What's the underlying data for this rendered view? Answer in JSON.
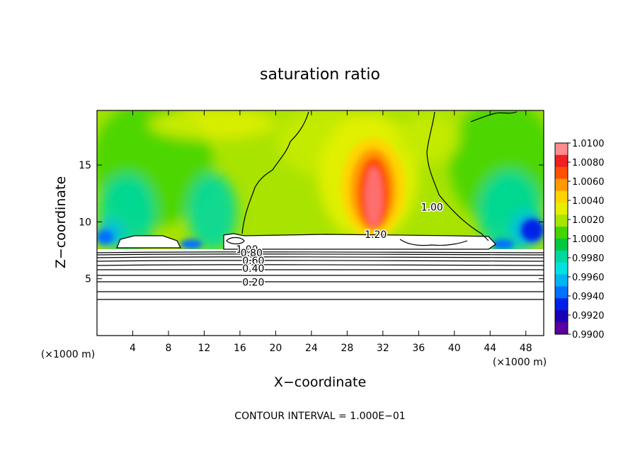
{
  "chart_data": {
    "type": "heatmap",
    "title": "saturation ratio",
    "xlabel": "X−coordinate",
    "ylabel": "Z−coordinate",
    "x_unit_left": "(×1000 m)",
    "x_unit_right": "(×1000 m)",
    "footer": "CONTOUR INTERVAL = 1.000E−01",
    "xlim": [
      0,
      50
    ],
    "ylim": [
      0,
      19.8
    ],
    "x_ticks": [
      4,
      8,
      12,
      16,
      20,
      24,
      28,
      32,
      36,
      40,
      44,
      48
    ],
    "y_ticks": [
      5,
      10,
      15
    ],
    "colorbar": {
      "min": 0.99,
      "max": 1.01,
      "labels": [
        "1.0100",
        "1.0080",
        "1.0060",
        "1.0040",
        "1.0020",
        "1.0000",
        "0.9980",
        "0.9960",
        "0.9940",
        "0.9920",
        "0.9900"
      ],
      "colors": [
        "#ff8c8c",
        "#ee2020",
        "#ff5000",
        "#ff9a00",
        "#ffd400",
        "#e4f000",
        "#a6e600",
        "#44d400",
        "#00c840",
        "#00d8a0",
        "#00e2e2",
        "#00b4f4",
        "#0070ff",
        "#0020e8",
        "#1c00b4",
        "#5a00a0"
      ]
    },
    "contour_labels": [
      {
        "text": "1.20",
        "x": 31.2,
        "z": 8.9
      },
      {
        "text": "1.00",
        "x": 37.5,
        "z": 11.3
      },
      {
        "text": "1.00",
        "x": 16.8,
        "z": 7.6
      },
      {
        "text": "0.80",
        "x": 17.3,
        "z": 7.3
      },
      {
        "text": "0.60",
        "x": 17.5,
        "z": 6.6
      },
      {
        "text": "0.40",
        "x": 17.5,
        "z": 5.9
      },
      {
        "text": "0.20",
        "x": 17.5,
        "z": 4.7
      }
    ],
    "grid": false,
    "legend": "colorbar-right"
  }
}
